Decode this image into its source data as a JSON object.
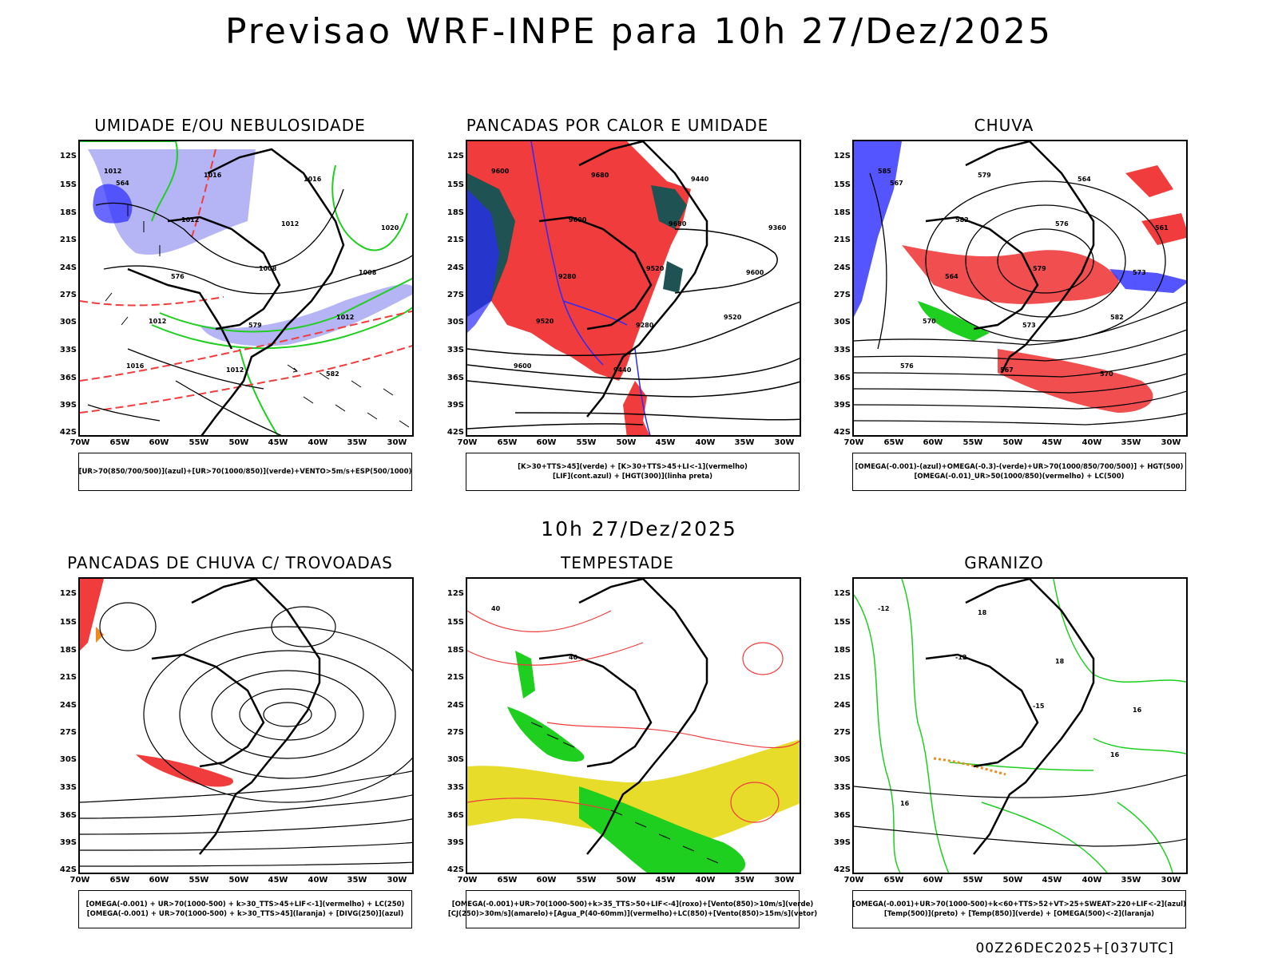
{
  "title": "Previsao WRF-INPE  para 10h 27/Dez/2025",
  "mid_title": "10h 27/Dez/2025",
  "footer": "00Z26DEC2025+[037UTC]",
  "lat_ticks": [
    "12S",
    "15S",
    "18S",
    "21S",
    "24S",
    "27S",
    "30S",
    "33S",
    "36S",
    "39S",
    "42S"
  ],
  "lon_ticks": [
    "70W",
    "65W",
    "60W",
    "55W",
    "50W",
    "45W",
    "40W",
    "35W",
    "30W"
  ],
  "colors": {
    "red": "#f03c3c",
    "green": "#1fcf1f",
    "blue": "#2a2aff",
    "lavender": "#a8a8f5",
    "yellow": "#e8dc2a",
    "teal": "#1f5252",
    "orange": "#f08a1c",
    "purple": "#8a1cf0"
  },
  "panels": [
    {
      "title": "UMIDADE E/OU NEBULOSIDADE",
      "legend": [
        "[UR>70(850/700/500)](azul)+[UR>70(1000/850)](verde)+VENTO>5m/s+ESP(500/1000)"
      ],
      "labels": [
        "1012",
        "1012",
        "1008",
        "1012",
        "1016",
        "1016",
        "1012",
        "1008",
        "1012",
        "1012",
        "1016",
        "1020",
        "576",
        "579",
        "582",
        "564"
      ]
    },
    {
      "title": "PANCADAS POR CALOR E UMIDADE",
      "legend": [
        "[K>30+TTS>45](verde) + [K>30+TTS>45+LI<-1](vermelho)",
        "[LIF](cont.azul) + [HGT(300)](linha preta)"
      ],
      "labels": [
        "9600",
        "9600",
        "9520",
        "9520",
        "9600",
        "9680",
        "9680",
        "9600",
        "9520",
        "9440",
        "9440",
        "9360",
        "9280",
        "9280"
      ]
    },
    {
      "title": "CHUVA",
      "legend": [
        "[OMEGA(-0.001)-(azul)+OMEGA(-0.3)-(verde)+UR>70(1000/850/700/500)] + HGT(500)",
        "[OMEGA(-0.01)_UR>50(1000/850)(vermelho) + LC(500)"
      ],
      "labels": [
        "585",
        "582",
        "579",
        "582",
        "576",
        "579",
        "576",
        "573",
        "570",
        "567",
        "564",
        "561",
        "564",
        "573",
        "570",
        "567"
      ]
    },
    {
      "title": "PANCADAS DE CHUVA C/ TROVOADAS",
      "legend": [
        "[OMEGA(-0.001) + UR>70(1000-500) + k>30_TTS>45+LIF<-1](vermelho) + LC(250)",
        "[OMEGA(-0.001) + UR>70(1000-500) + k>30_TTS>45](laranja) + [DIVG(250)](azul)"
      ],
      "labels": []
    },
    {
      "title": "TEMPESTADE",
      "legend": [
        "[OMEGA(-0.001)+UR>70(1000-500)+k>35_TTS>50+LIF<-4](roxo)+[Vento(850)>10m/s](verde)",
        "[CJ(250)>30m/s](amarelo)+[Agua_P(40-60mm)](vermelho)+LC(850)+[Vento(850)>15m/s](vetor)"
      ],
      "labels": [
        "40",
        "40"
      ]
    },
    {
      "title": "GRANIZO",
      "legend": [
        "[OMEGA(-0.001)+UR>70(1000-500)+k<60+TTS>52+VT>25+SWEAT>220+LIF<-2](azul)",
        "[Temp(500)](preto) + [Temp(850)](verde) + [OMEGA(500)<-2](laranja)"
      ],
      "labels": [
        "-12",
        "-12",
        "-15",
        "16",
        "16",
        "18",
        "18",
        "16"
      ]
    }
  ]
}
